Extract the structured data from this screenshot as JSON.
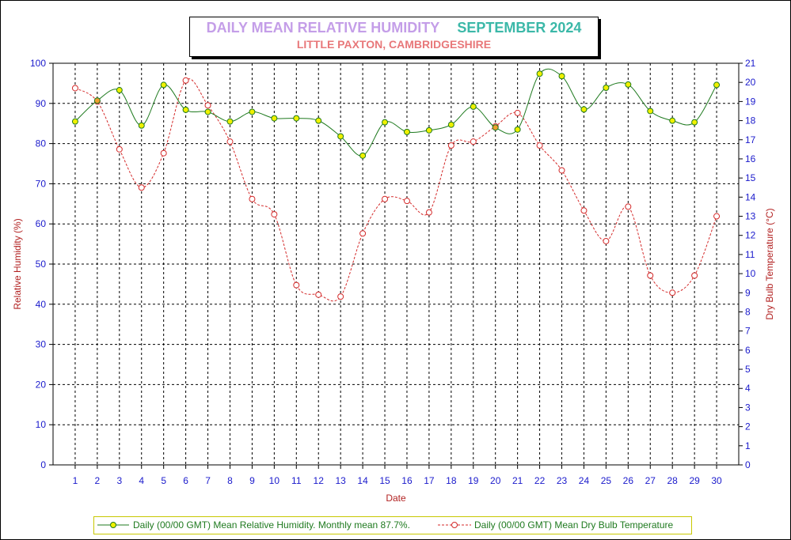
{
  "title": {
    "main": "DAILY MEAN RELATIVE HUMIDITY",
    "month": "SEPTEMBER 2024",
    "location": "LITTLE PAXTON, CAMBRIDGESHIRE"
  },
  "legend": {
    "rh": "Daily (00/00 GMT) Mean Relative Humidity. Monthly mean 87.7%.",
    "temp": "Daily (00/00 GMT) Mean Dry Bulb Temperature"
  },
  "colors": {
    "rh_line": "#1f7a1f",
    "rh_marker": "#f0f000",
    "temp_line": "#d42a2a",
    "temp_marker": "#ffffff",
    "overlap_marker": "#f0a030",
    "tick_labels": "#1a1acc",
    "axis_titles": "#b22222"
  },
  "chart_data": {
    "type": "line",
    "title": "DAILY MEAN RELATIVE HUMIDITY  SEPTEMBER 2024",
    "subtitle": "LITTLE PAXTON, CAMBRIDGESHIRE",
    "xlabel": "Date",
    "ylabel": "Relative Humidity (%)",
    "y2label": "Dry Bulb Temperature (°C)",
    "x": [
      1,
      2,
      3,
      4,
      5,
      6,
      7,
      8,
      9,
      10,
      11,
      12,
      13,
      14,
      15,
      16,
      17,
      18,
      19,
      20,
      21,
      22,
      23,
      24,
      25,
      26,
      27,
      28,
      29,
      30
    ],
    "xlim": [
      0,
      31
    ],
    "ylim": [
      0,
      100
    ],
    "y2lim": [
      0,
      21
    ],
    "yticks": [
      0,
      10,
      20,
      30,
      40,
      50,
      60,
      70,
      80,
      90,
      100
    ],
    "y2ticks": [
      0,
      1,
      2,
      3,
      4,
      5,
      6,
      7,
      8,
      9,
      10,
      11,
      12,
      13,
      14,
      15,
      16,
      17,
      18,
      19,
      20,
      21
    ],
    "grid": true,
    "legend_position": "bottom",
    "series": [
      {
        "name": "Daily (00/00 GMT) Mean Relative Humidity. Monthly mean 87.7%.",
        "axis": "left",
        "values": [
          85.5,
          90.7,
          93.3,
          84.5,
          94.6,
          88.4,
          87.9,
          85.5,
          87.9,
          86.3,
          86.3,
          85.7,
          81.8,
          77.0,
          85.3,
          82.9,
          83.3,
          84.7,
          89.2,
          84.0,
          83.5,
          97.4,
          96.8,
          88.5,
          93.9,
          94.7,
          88.1,
          85.7,
          85.3,
          94.6
        ]
      },
      {
        "name": "Daily (00/00 GMT) Mean Dry Bulb Temperature",
        "axis": "right",
        "values": [
          19.7,
          19.0,
          16.5,
          14.5,
          16.3,
          20.1,
          18.8,
          16.9,
          13.9,
          13.1,
          9.4,
          8.9,
          8.8,
          12.1,
          13.9,
          13.8,
          13.2,
          16.7,
          16.9,
          17.7,
          18.4,
          16.7,
          15.4,
          13.3,
          11.7,
          13.5,
          9.9,
          9.0,
          9.9,
          13.0
        ]
      }
    ]
  }
}
